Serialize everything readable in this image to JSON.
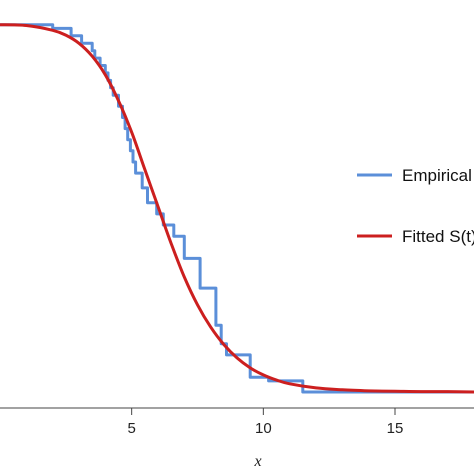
{
  "chart_data": {
    "type": "line",
    "xlabel": "x",
    "xlim": [
      0,
      18
    ],
    "ylim": [
      0,
      1
    ],
    "x_ticks": [
      5,
      10,
      15
    ],
    "x_tick_labels": [
      "5",
      "10",
      "15"
    ],
    "grid": false,
    "legend_placement": "right",
    "series": [
      {
        "name": "Empirical",
        "color": "#5b8fd9",
        "style": "step",
        "x": [
          0,
          2.0,
          2.7,
          3.1,
          3.5,
          3.6,
          3.8,
          4.0,
          4.1,
          4.2,
          4.3,
          4.5,
          4.65,
          4.75,
          4.85,
          4.95,
          5.05,
          5.15,
          5.4,
          5.6,
          5.95,
          6.2,
          6.6,
          7.0,
          7.6,
          8.2,
          8.4,
          8.6,
          9.0,
          9.5,
          10.2,
          11.5,
          18.0
        ],
        "y": [
          0.99,
          0.98,
          0.96,
          0.94,
          0.92,
          0.9,
          0.88,
          0.86,
          0.84,
          0.82,
          0.8,
          0.77,
          0.74,
          0.71,
          0.68,
          0.65,
          0.62,
          0.59,
          0.55,
          0.51,
          0.48,
          0.45,
          0.42,
          0.36,
          0.28,
          0.18,
          0.13,
          0.1,
          0.1,
          0.04,
          0.03,
          0.0,
          0.0
        ]
      },
      {
        "name": "Fitted S(t)",
        "color": "#cc1f1f",
        "style": "smooth",
        "x": [
          0,
          1,
          2,
          2.5,
          3,
          3.5,
          4,
          4.5,
          5,
          5.5,
          6,
          6.5,
          7,
          7.5,
          8,
          8.5,
          9,
          9.5,
          10,
          10.5,
          11,
          12,
          13,
          14,
          15,
          16,
          17,
          18
        ],
        "y": [
          0.99,
          0.988,
          0.975,
          0.962,
          0.94,
          0.905,
          0.855,
          0.785,
          0.7,
          0.6,
          0.5,
          0.4,
          0.31,
          0.235,
          0.175,
          0.128,
          0.092,
          0.065,
          0.046,
          0.032,
          0.022,
          0.011,
          0.006,
          0.003,
          0.002,
          0.001,
          0.001,
          0.0
        ]
      }
    ]
  }
}
